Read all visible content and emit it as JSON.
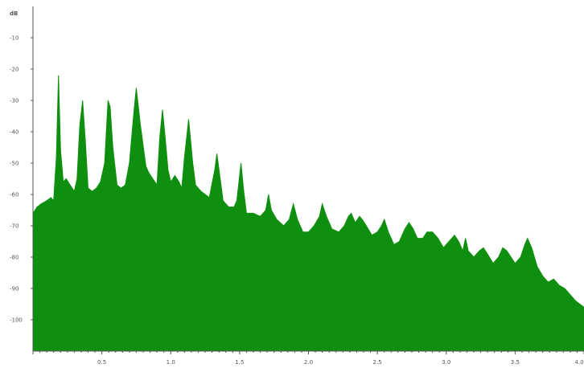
{
  "chart_data": {
    "type": "area",
    "title": "",
    "ylabel_unit": "dB",
    "xlim": [
      0,
      4.0
    ],
    "ylim": [
      -110,
      0
    ],
    "y_ticks": [
      {
        "value": -10,
        "label": "-10"
      },
      {
        "value": -20,
        "label": "-20"
      },
      {
        "value": -30,
        "label": "-30"
      },
      {
        "value": -40,
        "label": "-40"
      },
      {
        "value": -50,
        "label": "-50"
      },
      {
        "value": -60,
        "label": "-60"
      },
      {
        "value": -70,
        "label": "-70"
      },
      {
        "value": -80,
        "label": "-80"
      },
      {
        "value": -90,
        "label": "-90"
      },
      {
        "value": -100,
        "label": "-100"
      }
    ],
    "x_ticks": [
      {
        "value": 0.5,
        "label": "0.5"
      },
      {
        "value": 1.0,
        "label": "1.0"
      },
      {
        "value": 1.5,
        "label": "1.5"
      },
      {
        "value": 2.0,
        "label": "2.0"
      },
      {
        "value": 2.5,
        "label": "2.5"
      },
      {
        "value": 3.0,
        "label": "3.0"
      },
      {
        "value": 3.5,
        "label": "3.5"
      },
      {
        "value": 4.0,
        "label": "4.0"
      }
    ],
    "grid": false,
    "fill_color": "#0f8f0f",
    "axis_color": "#555555",
    "series": [
      {
        "values": [
          [
            0.0,
            -66
          ],
          [
            0.03,
            -64
          ],
          [
            0.06,
            -63
          ],
          [
            0.1,
            -62
          ],
          [
            0.13,
            -61
          ],
          [
            0.15,
            -62
          ],
          [
            0.17,
            -48
          ],
          [
            0.185,
            -22
          ],
          [
            0.2,
            -46
          ],
          [
            0.22,
            -56
          ],
          [
            0.24,
            -55
          ],
          [
            0.27,
            -57
          ],
          [
            0.3,
            -59
          ],
          [
            0.32,
            -55
          ],
          [
            0.34,
            -38
          ],
          [
            0.36,
            -30
          ],
          [
            0.38,
            -43
          ],
          [
            0.4,
            -58
          ],
          [
            0.43,
            -59
          ],
          [
            0.46,
            -58
          ],
          [
            0.49,
            -56
          ],
          [
            0.52,
            -50
          ],
          [
            0.545,
            -30
          ],
          [
            0.56,
            -32
          ],
          [
            0.58,
            -45
          ],
          [
            0.61,
            -57
          ],
          [
            0.64,
            -58
          ],
          [
            0.67,
            -57
          ],
          [
            0.7,
            -50
          ],
          [
            0.73,
            -35
          ],
          [
            0.75,
            -26
          ],
          [
            0.78,
            -38
          ],
          [
            0.82,
            -51
          ],
          [
            0.84,
            -53
          ],
          [
            0.87,
            -55
          ],
          [
            0.9,
            -57
          ],
          [
            0.92,
            -42
          ],
          [
            0.94,
            -33
          ],
          [
            0.96,
            -42
          ],
          [
            0.98,
            -52
          ],
          [
            1.0,
            -56
          ],
          [
            1.03,
            -54
          ],
          [
            1.06,
            -56
          ],
          [
            1.08,
            -58
          ],
          [
            1.1,
            -48
          ],
          [
            1.13,
            -36
          ],
          [
            1.16,
            -50
          ],
          [
            1.18,
            -57
          ],
          [
            1.22,
            -59
          ],
          [
            1.25,
            -60
          ],
          [
            1.28,
            -61
          ],
          [
            1.32,
            -52
          ],
          [
            1.335,
            -47
          ],
          [
            1.35,
            -52
          ],
          [
            1.38,
            -62
          ],
          [
            1.42,
            -64
          ],
          [
            1.46,
            -64
          ],
          [
            1.48,
            -62
          ],
          [
            1.51,
            -50
          ],
          [
            1.53,
            -59
          ],
          [
            1.55,
            -66
          ],
          [
            1.6,
            -66
          ],
          [
            1.65,
            -67
          ],
          [
            1.69,
            -65
          ],
          [
            1.71,
            -60
          ],
          [
            1.73,
            -65
          ],
          [
            1.77,
            -68
          ],
          [
            1.82,
            -70
          ],
          [
            1.86,
            -68
          ],
          [
            1.89,
            -63
          ],
          [
            1.92,
            -68
          ],
          [
            1.96,
            -72
          ],
          [
            2.0,
            -72
          ],
          [
            2.04,
            -70
          ],
          [
            2.08,
            -67
          ],
          [
            2.1,
            -63
          ],
          [
            2.13,
            -67
          ],
          [
            2.17,
            -71
          ],
          [
            2.22,
            -72
          ],
          [
            2.26,
            -70
          ],
          [
            2.29,
            -67
          ],
          [
            2.31,
            -66
          ],
          [
            2.34,
            -69
          ],
          [
            2.37,
            -67
          ],
          [
            2.39,
            -68
          ],
          [
            2.42,
            -70
          ],
          [
            2.46,
            -73
          ],
          [
            2.5,
            -72
          ],
          [
            2.53,
            -70
          ],
          [
            2.55,
            -68
          ],
          [
            2.58,
            -72
          ],
          [
            2.62,
            -76
          ],
          [
            2.66,
            -75
          ],
          [
            2.7,
            -71
          ],
          [
            2.73,
            -69
          ],
          [
            2.76,
            -71
          ],
          [
            2.79,
            -74
          ],
          [
            2.83,
            -74
          ],
          [
            2.86,
            -72
          ],
          [
            2.9,
            -72
          ],
          [
            2.94,
            -74
          ],
          [
            2.98,
            -77
          ],
          [
            3.02,
            -75
          ],
          [
            3.06,
            -73
          ],
          [
            3.09,
            -75
          ],
          [
            3.12,
            -78
          ],
          [
            3.14,
            -74
          ],
          [
            3.16,
            -78
          ],
          [
            3.2,
            -80
          ],
          [
            3.24,
            -78
          ],
          [
            3.27,
            -77
          ],
          [
            3.3,
            -79
          ],
          [
            3.34,
            -82
          ],
          [
            3.38,
            -80
          ],
          [
            3.41,
            -77
          ],
          [
            3.44,
            -78
          ],
          [
            3.47,
            -80
          ],
          [
            3.5,
            -82
          ],
          [
            3.54,
            -80
          ],
          [
            3.57,
            -76
          ],
          [
            3.59,
            -74
          ],
          [
            3.62,
            -77
          ],
          [
            3.66,
            -83
          ],
          [
            3.7,
            -86
          ],
          [
            3.74,
            -88
          ],
          [
            3.78,
            -87
          ],
          [
            3.82,
            -89
          ],
          [
            3.86,
            -90
          ],
          [
            3.9,
            -92
          ],
          [
            3.94,
            -94
          ],
          [
            3.97,
            -95
          ],
          [
            4.0,
            -96
          ]
        ]
      }
    ]
  }
}
